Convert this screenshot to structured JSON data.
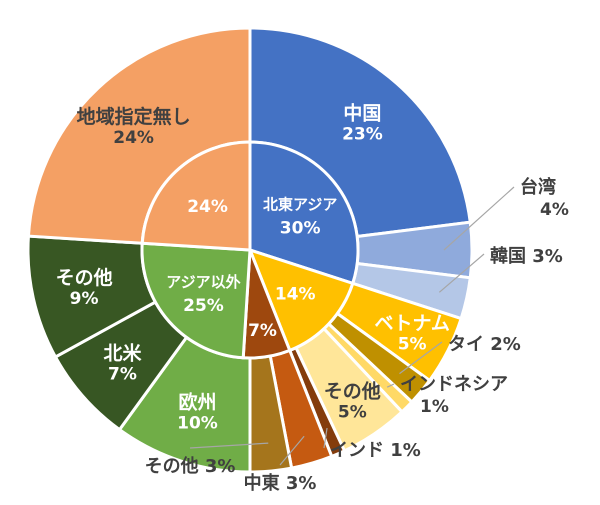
{
  "chart_data": {
    "type": "pie",
    "variant": "nested-donut",
    "unit": "%",
    "inner_ring": [
      {
        "name": "北東アジア",
        "value": 30,
        "color": "#4472C4",
        "text_color": "#ffffff"
      },
      {
        "name": "",
        "value": 14,
        "color": "#FFC000",
        "text_color": "#ffffff"
      },
      {
        "name": "",
        "value": 7,
        "color": "#9E480E",
        "text_color": "#ffffff"
      },
      {
        "name": "アジア以外",
        "value": 25,
        "color": "#70AD47",
        "text_color": "#ffffff"
      },
      {
        "name": "",
        "value": 24,
        "color": "#F4A064",
        "text_color": "#ffffff"
      }
    ],
    "outer_ring": [
      {
        "name": "中国",
        "value": 23,
        "color": "#4472C4",
        "label_inside": true,
        "text_color": "#ffffff"
      },
      {
        "name": "台湾",
        "value": 4,
        "color": "#8FAADC",
        "label_inside": false
      },
      {
        "name": "韓国",
        "value": 3,
        "color": "#B4C7E7",
        "label_inside": false
      },
      {
        "name": "ベトナム",
        "value": 5,
        "color": "#FFC000",
        "label_inside": true,
        "text_color": "#ffffff"
      },
      {
        "name": "タイ",
        "value": 2,
        "color": "#BF9000",
        "label_inside": false
      },
      {
        "name": "インドネシア",
        "value": 1,
        "color": "#FFD966",
        "label_inside": false
      },
      {
        "name": "その他",
        "value": 5,
        "color": "#FFE699",
        "label_inside": true,
        "text_color": "#404040"
      },
      {
        "name": "インド",
        "value": 1,
        "color": "#843C0C",
        "label_inside": false
      },
      {
        "name": "中東",
        "value": 3,
        "color": "#C55A11",
        "label_inside": false
      },
      {
        "name": "その他",
        "value": 3,
        "color": "#A5751C",
        "label_inside": false
      },
      {
        "name": "欧州",
        "value": 10,
        "color": "#70AD47",
        "label_inside": true,
        "text_color": "#ffffff"
      },
      {
        "name": "北米",
        "value": 7,
        "color": "#375623",
        "label_inside": true,
        "text_color": "#ffffff"
      },
      {
        "name": "その他",
        "value": 9,
        "color": "#385723",
        "label_inside": true,
        "text_color": "#ffffff"
      },
      {
        "name": "地域指定無し",
        "value": 24,
        "color": "#F4A064",
        "label_inside": true,
        "text_color": "#404040"
      }
    ]
  }
}
